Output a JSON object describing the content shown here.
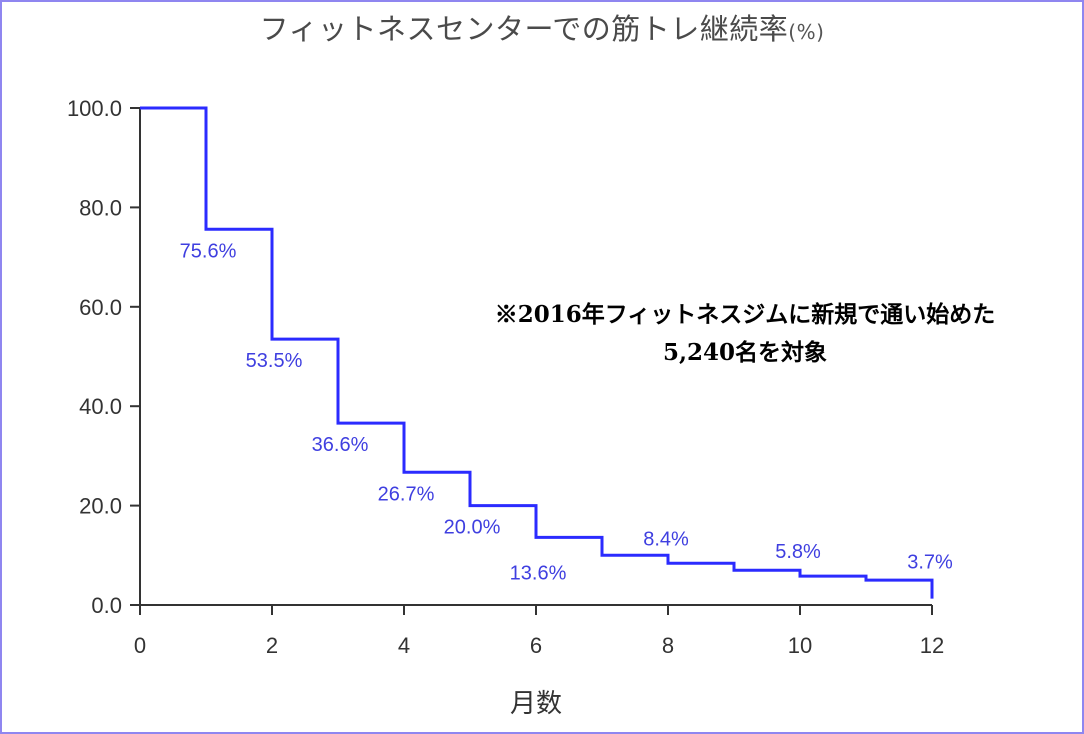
{
  "chart_data": {
    "type": "line",
    "step": true,
    "title": "フィットネスセンターでの筋トレ継続率",
    "title_unit": "(%)",
    "xlabel": "月数",
    "ylabel": "",
    "xlim": [
      0,
      12
    ],
    "ylim": [
      0,
      100
    ],
    "x_ticks": [
      "0",
      "2",
      "4",
      "6",
      "8",
      "10",
      "12"
    ],
    "y_ticks": [
      "0.0",
      "20.0",
      "40.0",
      "60.0",
      "80.0",
      "100.0"
    ],
    "grid": false,
    "series": [
      {
        "color": "#2b2bff",
        "x": [
          0,
          1,
          2,
          3,
          4,
          5,
          6,
          7,
          8,
          9,
          10,
          11,
          12
        ],
        "values": [
          100.0,
          75.6,
          53.5,
          36.6,
          26.7,
          20.0,
          13.6,
          10.0,
          8.4,
          7.0,
          5.8,
          5.0,
          3.7
        ]
      }
    ],
    "data_labels": [
      {
        "x": 1,
        "text": "75.6%"
      },
      {
        "x": 2,
        "text": "53.5%"
      },
      {
        "x": 3,
        "text": "36.6%"
      },
      {
        "x": 4,
        "text": "26.7%"
      },
      {
        "x": 5,
        "text": "20.0%"
      },
      {
        "x": 6,
        "text": "13.6%"
      },
      {
        "x": 8,
        "text": "8.4%"
      },
      {
        "x": 10,
        "text": "5.8%"
      },
      {
        "x": 12,
        "text": "3.7%"
      }
    ],
    "annotation": {
      "line1": "※2016年フィットネスジムに新規で通い始めた",
      "line2": "5,240名を対象"
    }
  }
}
